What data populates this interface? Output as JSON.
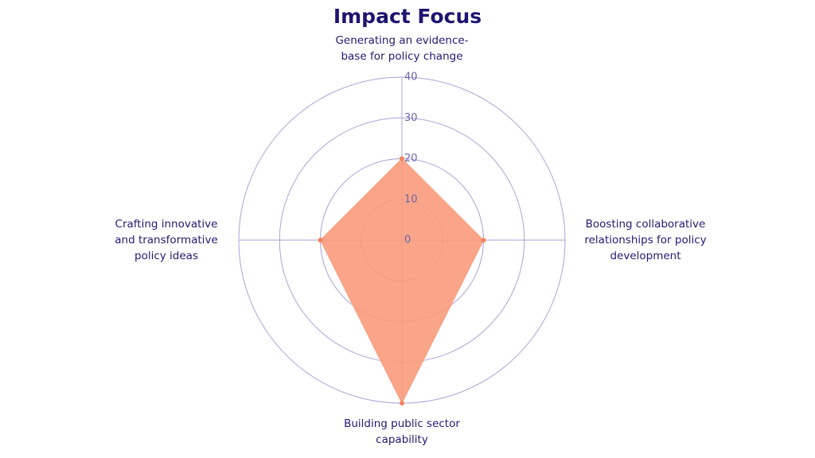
{
  "chart_data": {
    "type": "radar",
    "title": "Impact Focus",
    "categories": [
      "Generating an evidence-base for policy change",
      "Boosting collaborative relationships for policy development",
      "Building public sector capability",
      "Crafting innovative and transformative policy ideas"
    ],
    "values": [
      20,
      20,
      40,
      20
    ],
    "color": "#f99b7d",
    "rlim": [
      0,
      40
    ],
    "rticks": [
      0,
      10,
      20,
      30,
      40
    ],
    "grid": true
  }
}
